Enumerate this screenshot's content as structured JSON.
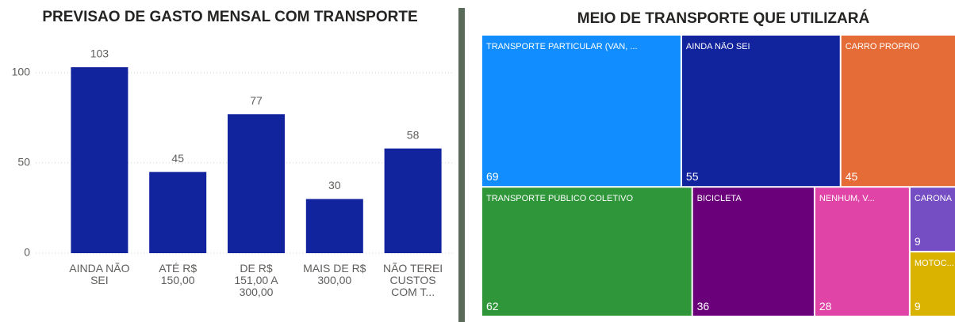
{
  "chart_data": [
    {
      "type": "bar",
      "title": "PREVISAO DE GASTO MENSAL COM TRANSPORTE",
      "categories": [
        "AINDA NÃO SEI",
        "ATÉ R$ 150,00",
        "DE R$ 151,00 A 300,00",
        "MAIS DE R$ 300,00",
        "NÃO TEREI CUSTOS COM T..."
      ],
      "values": [
        103,
        45,
        77,
        30,
        58
      ],
      "color": "#12239e",
      "ylim": [
        0,
        110
      ],
      "yticks": [
        0,
        50,
        100
      ],
      "grid": true
    },
    {
      "type": "treemap",
      "title": "MEIO DE TRANSPORTE QUE UTILIZARÁ",
      "categories": [
        "TRANSPORTE PARTICULAR (VAN, ...",
        "AINDA NÃO SEI",
        "CARRO PRÓPRIO",
        "TRANSPORTE PÚBLICO COLETIVO",
        "BICICLETA",
        "NENHUM, V...",
        "CARONA",
        "MOTOC..."
      ],
      "values": [
        69,
        55,
        45,
        62,
        36,
        28,
        9,
        9
      ],
      "colors": [
        "#118dff",
        "#12239e",
        "#e66c37",
        "#2f963a",
        "#6b007b",
        "#e044a7",
        "#744ec2",
        "#d9b300"
      ]
    }
  ]
}
